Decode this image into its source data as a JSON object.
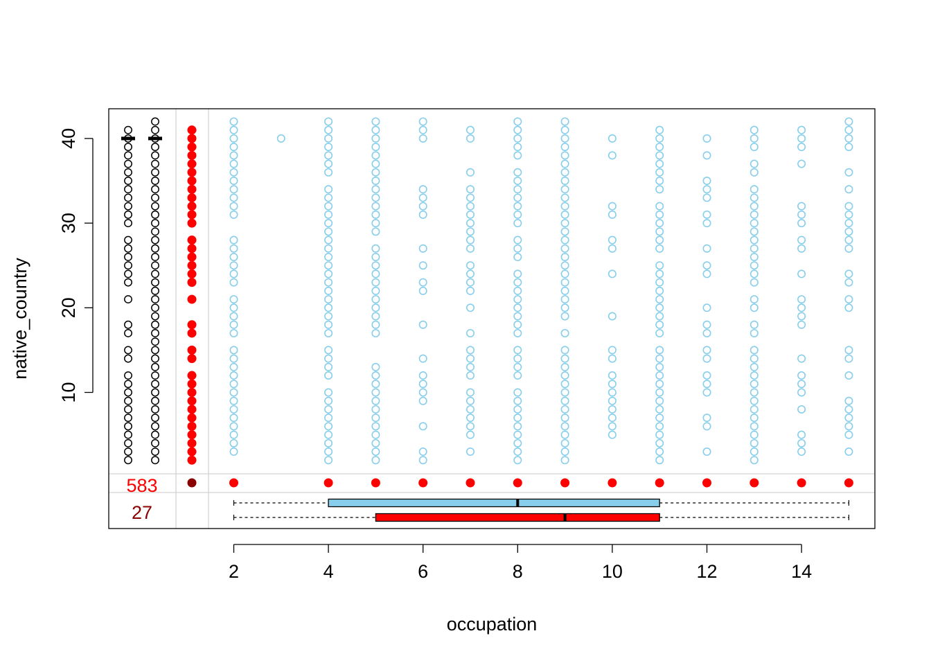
{
  "chart_data": {
    "type": "scatter",
    "subtype": "missing-values scatter (VIM marginplot style)",
    "xlabel": "occupation",
    "ylabel": "native_country",
    "xlim": [
      1,
      15
    ],
    "ylim": [
      2,
      42
    ],
    "x_ticks": [
      2,
      4,
      6,
      8,
      10,
      12,
      14
    ],
    "y_ticks": [
      10,
      20,
      30,
      40
    ],
    "colors": {
      "observed": "#87CEEB",
      "missing": "#FF0000",
      "both_missing": "#8B0000",
      "margin_points": "#000000",
      "separator": "#D3D3D3"
    },
    "missing_counts": {
      "x_missing_only": "583",
      "both_missing": "27"
    },
    "observed_points": [
      {
        "x": 2,
        "y": [
          3,
          4,
          5,
          6,
          7,
          8,
          9,
          10,
          11,
          12,
          13,
          14,
          15,
          17,
          18,
          19,
          20,
          21,
          23,
          24,
          25,
          26,
          27,
          28,
          31,
          32,
          33,
          34,
          35,
          36,
          37,
          38,
          39,
          40,
          41,
          42
        ]
      },
      {
        "x": 3,
        "y": [
          40
        ]
      },
      {
        "x": 4,
        "y": [
          2,
          3,
          4,
          5,
          6,
          7,
          8,
          9,
          10,
          12,
          13,
          14,
          15,
          17,
          18,
          19,
          20,
          21,
          22,
          23,
          24,
          25,
          26,
          27,
          28,
          29,
          30,
          31,
          32,
          33,
          34,
          36,
          37,
          38,
          39,
          40,
          41,
          42
        ]
      },
      {
        "x": 5,
        "y": [
          2,
          3,
          4,
          5,
          6,
          7,
          8,
          9,
          10,
          11,
          12,
          13,
          17,
          18,
          19,
          20,
          21,
          22,
          23,
          24,
          25,
          26,
          27,
          29,
          30,
          31,
          32,
          33,
          34,
          35,
          36,
          37,
          38,
          39,
          40,
          41,
          42
        ]
      },
      {
        "x": 6,
        "y": [
          2,
          3,
          6,
          9,
          10,
          11,
          12,
          14,
          18,
          22,
          23,
          25,
          27,
          31,
          32,
          33,
          34,
          40,
          41,
          42
        ]
      },
      {
        "x": 7,
        "y": [
          3,
          5,
          6,
          7,
          8,
          9,
          10,
          12,
          13,
          14,
          15,
          17,
          20,
          22,
          23,
          24,
          25,
          27,
          28,
          29,
          30,
          31,
          32,
          33,
          34,
          36,
          40,
          41
        ]
      },
      {
        "x": 8,
        "y": [
          2,
          3,
          4,
          5,
          6,
          7,
          8,
          9,
          10,
          12,
          13,
          14,
          15,
          17,
          18,
          19,
          20,
          21,
          22,
          23,
          24,
          26,
          27,
          28,
          30,
          31,
          32,
          33,
          34,
          35,
          36,
          38,
          39,
          40,
          41,
          42
        ]
      },
      {
        "x": 9,
        "y": [
          2,
          3,
          4,
          5,
          6,
          7,
          8,
          9,
          10,
          11,
          12,
          13,
          14,
          15,
          17,
          19,
          20,
          21,
          22,
          23,
          24,
          25,
          26,
          27,
          28,
          29,
          30,
          31,
          32,
          33,
          34,
          35,
          36,
          37,
          38,
          39,
          40,
          41,
          42
        ]
      },
      {
        "x": 10,
        "y": [
          5,
          6,
          7,
          8,
          9,
          10,
          11,
          12,
          14,
          15,
          19,
          24,
          27,
          28,
          31,
          32,
          38,
          40
        ]
      },
      {
        "x": 11,
        "y": [
          2,
          3,
          4,
          5,
          6,
          7,
          8,
          9,
          10,
          11,
          12,
          13,
          14,
          15,
          17,
          18,
          19,
          20,
          21,
          22,
          23,
          24,
          25,
          27,
          28,
          29,
          30,
          31,
          32,
          34,
          35,
          36,
          37,
          38,
          39,
          40,
          41
        ]
      },
      {
        "x": 12,
        "y": [
          3,
          6,
          7,
          10,
          11,
          12,
          14,
          15,
          17,
          18,
          20,
          24,
          25,
          27,
          30,
          31,
          33,
          34,
          35,
          38,
          40
        ]
      },
      {
        "x": 13,
        "y": [
          2,
          3,
          4,
          5,
          6,
          7,
          8,
          9,
          10,
          11,
          12,
          13,
          14,
          15,
          17,
          18,
          20,
          21,
          23,
          24,
          25,
          26,
          27,
          28,
          29,
          30,
          31,
          32,
          33,
          34,
          36,
          37,
          39,
          40,
          41
        ]
      },
      {
        "x": 14,
        "y": [
          3,
          4,
          5,
          8,
          10,
          11,
          12,
          14,
          18,
          19,
          20,
          21,
          24,
          27,
          28,
          30,
          31,
          32,
          37,
          39,
          40,
          41
        ]
      },
      {
        "x": 15,
        "y": [
          3,
          5,
          6,
          7,
          8,
          9,
          12,
          14,
          15,
          20,
          21,
          23,
          24,
          27,
          28,
          29,
          30,
          31,
          32,
          34,
          36,
          39,
          40,
          41,
          42
        ]
      }
    ],
    "y_margin_missing_x": [
      2,
      3,
      4,
      5,
      6,
      7,
      8,
      9,
      10,
      11,
      12,
      14,
      15,
      17,
      18,
      21,
      23,
      24,
      25,
      26,
      27,
      28,
      30,
      31,
      32,
      33,
      34,
      35,
      36,
      37,
      38,
      39,
      40,
      41
    ],
    "y_margin_observed_black_left": [
      2,
      3,
      4,
      5,
      6,
      7,
      8,
      9,
      10,
      11,
      12,
      14,
      15,
      17,
      18,
      21,
      23,
      24,
      25,
      26,
      27,
      28,
      30,
      31,
      32,
      33,
      34,
      35,
      36,
      37,
      38,
      39,
      40,
      41
    ],
    "y_margin_observed_black_right": [
      2,
      3,
      4,
      5,
      6,
      7,
      8,
      9,
      10,
      11,
      12,
      13,
      14,
      15,
      16,
      17,
      18,
      19,
      20,
      21,
      22,
      23,
      24,
      25,
      26,
      27,
      28,
      29,
      30,
      31,
      32,
      33,
      34,
      35,
      36,
      37,
      38,
      39,
      40,
      41,
      42
    ],
    "y_margin_medians": [
      40,
      40
    ],
    "x_margin_missing_y": [
      2,
      4,
      5,
      6,
      7,
      8,
      9,
      10,
      11,
      12,
      13,
      14,
      15
    ],
    "boxplots_x": [
      {
        "name": "observed",
        "min": 2,
        "q1": 4,
        "median": 8,
        "q3": 11,
        "max": 15
      },
      {
        "name": "missing",
        "min": 2,
        "q1": 5,
        "median": 9,
        "q3": 11,
        "max": 15
      }
    ]
  }
}
